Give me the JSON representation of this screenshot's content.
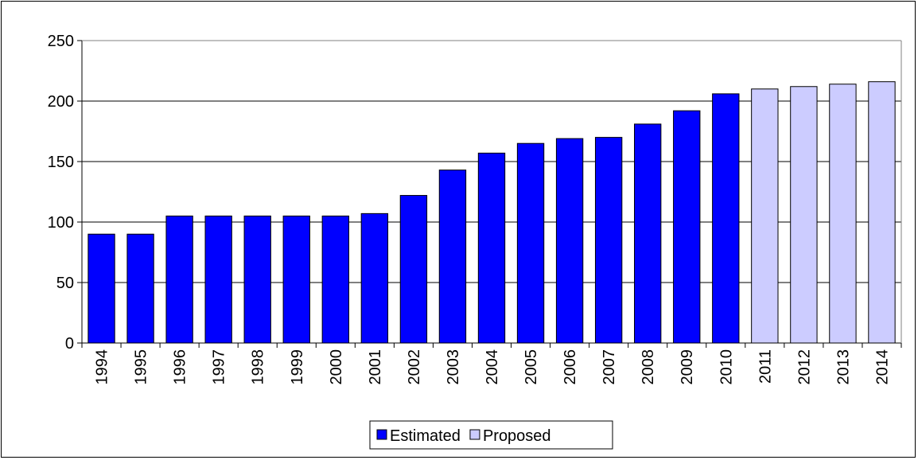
{
  "chart_data": {
    "type": "bar",
    "categories": [
      "1994",
      "1995",
      "1996",
      "1997",
      "1998",
      "1999",
      "2000",
      "2001",
      "2002",
      "2003",
      "2004",
      "2005",
      "2006",
      "2007",
      "2008",
      "2009",
      "2010",
      "2011",
      "2012",
      "2013",
      "2014"
    ],
    "values": [
      90,
      90,
      105,
      105,
      105,
      105,
      105,
      107,
      122,
      143,
      157,
      165,
      169,
      170,
      181,
      192,
      206,
      210,
      212,
      214,
      216
    ],
    "series_assignment": [
      "Estimated",
      "Estimated",
      "Estimated",
      "Estimated",
      "Estimated",
      "Estimated",
      "Estimated",
      "Estimated",
      "Estimated",
      "Estimated",
      "Estimated",
      "Estimated",
      "Estimated",
      "Estimated",
      "Estimated",
      "Estimated",
      "Estimated",
      "Proposed",
      "Proposed",
      "Proposed",
      "Proposed"
    ],
    "series": [
      {
        "name": "Estimated",
        "color": "#0000FF"
      },
      {
        "name": "Proposed",
        "color": "#CCCCFF"
      }
    ],
    "title": "",
    "xlabel": "",
    "ylabel": "",
    "ylim": [
      0,
      250
    ],
    "yticks": [
      0,
      50,
      100,
      150,
      200,
      250
    ],
    "grid": true,
    "legend_position": "bottom"
  }
}
